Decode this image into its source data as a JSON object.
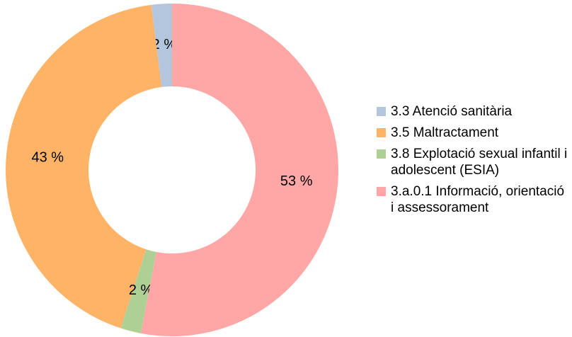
{
  "chart_data": {
    "type": "donut",
    "categories": [
      "3.3 Atenció sanitària",
      "3.5 Maltractament",
      "3.8 Explotació sexual infantil i adolescent (ESIA)",
      "3.a.0.1 Informació, orientació i assesso­rament"
    ],
    "values": [
      2,
      43,
      2,
      53
    ],
    "value_labels": [
      "2 %",
      "43 %",
      "2 %",
      "53 %"
    ],
    "colors": [
      "#b3c6de",
      "#ffb366",
      "#afd095",
      "#ffa6a6"
    ],
    "legend": "right"
  }
}
